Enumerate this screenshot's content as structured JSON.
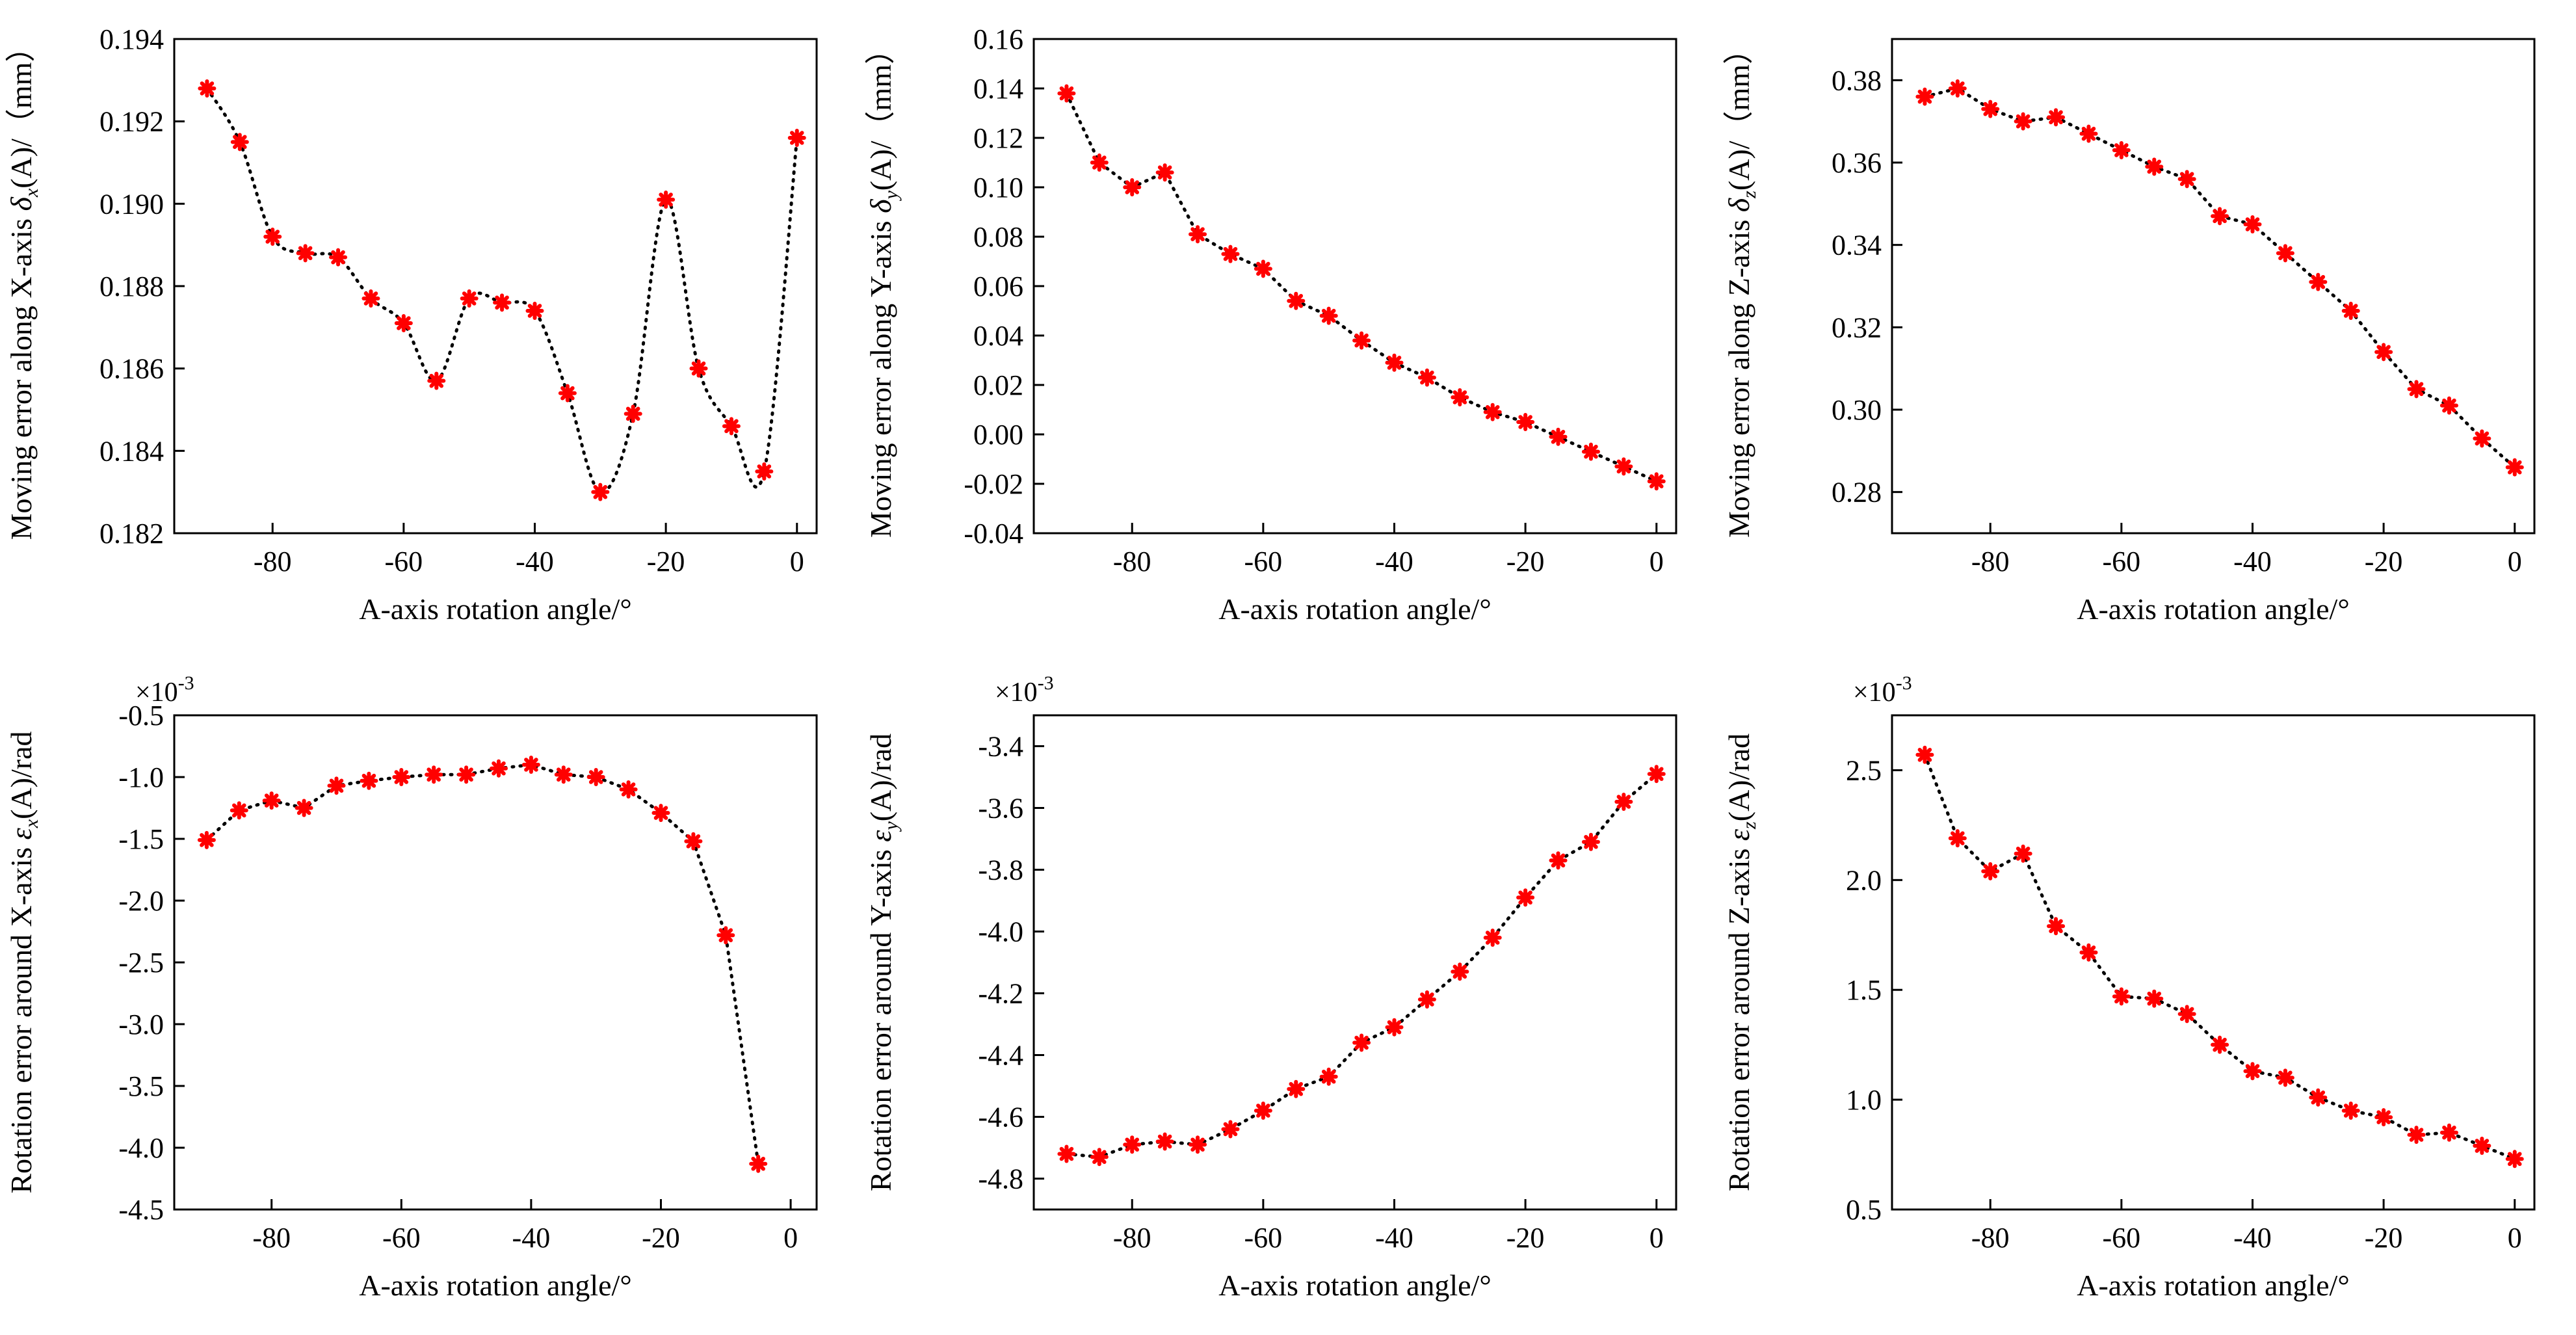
{
  "colors": {
    "marker": "#ff0000",
    "fit_line": "#000000",
    "axis": "#000000"
  },
  "chart_data": [
    {
      "type": "scatter",
      "panel": "top-left",
      "xlabel": "A-axis rotation angle/°",
      "ylabel": "Moving error along X-axis δx(A)/（mm）",
      "ylabel_parts": {
        "before": "Moving error along X-axis ",
        "sym": "δ",
        "sub": "x",
        "after": "(A)/（mm）"
      },
      "xlim": [
        -95,
        3
      ],
      "ylim": [
        0.182,
        0.194
      ],
      "xticks": [
        -80,
        -60,
        -40,
        -20,
        0
      ],
      "yticks": [
        0.182,
        0.184,
        0.186,
        0.188,
        0.19,
        0.192,
        0.194
      ],
      "ytick_labels": [
        "0.182",
        "0.184",
        "0.186",
        "0.188",
        "0.190",
        "0.192",
        "0.194"
      ],
      "multiplier_label": "",
      "fit": "spline",
      "x": [
        -90,
        -85,
        -80,
        -75,
        -70,
        -65,
        -60,
        -55,
        -50,
        -45,
        -40,
        -35,
        -30,
        -25,
        -20,
        -15,
        -10,
        -5,
        0
      ],
      "y": [
        0.1928,
        0.1915,
        0.1892,
        0.1888,
        0.1887,
        0.1877,
        0.1871,
        0.1857,
        0.1877,
        0.1876,
        0.1874,
        0.1854,
        0.183,
        0.1849,
        0.1901,
        0.186,
        0.1846,
        0.1835,
        0.1916
      ]
    },
    {
      "type": "scatter",
      "panel": "top-middle",
      "xlabel": "A-axis rotation angle/°",
      "ylabel": "Moving error along Y-axis δy(A)/（mm）",
      "ylabel_parts": {
        "before": "Moving error along Y-axis ",
        "sym": "δ",
        "sub": "y",
        "after": "(A)/（mm）"
      },
      "xlim": [
        -95,
        3
      ],
      "ylim": [
        -0.04,
        0.16
      ],
      "xticks": [
        -80,
        -60,
        -40,
        -20,
        0
      ],
      "yticks": [
        -0.04,
        -0.02,
        0.0,
        0.02,
        0.04,
        0.06,
        0.08,
        0.1,
        0.12,
        0.14,
        0.16
      ],
      "ytick_labels": [
        "-0.04",
        "-0.02",
        "0.00",
        "0.02",
        "0.04",
        "0.06",
        "0.08",
        "0.10",
        "0.12",
        "0.14",
        "0.16"
      ],
      "multiplier_label": "",
      "fit": "linear",
      "x": [
        -90,
        -85,
        -80,
        -75,
        -70,
        -65,
        -60,
        -55,
        -50,
        -45,
        -40,
        -35,
        -30,
        -25,
        -20,
        -15,
        -10,
        -5,
        0
      ],
      "y": [
        0.138,
        0.11,
        0.1,
        0.106,
        0.081,
        0.073,
        0.067,
        0.054,
        0.048,
        0.038,
        0.029,
        0.023,
        0.015,
        0.009,
        0.005,
        -0.001,
        -0.007,
        -0.013,
        -0.019
      ]
    },
    {
      "type": "scatter",
      "panel": "top-right",
      "xlabel": "A-axis rotation angle/°",
      "ylabel": "Moving error along Z-axis δz(A)/（mm）",
      "ylabel_parts": {
        "before": "Moving error along Z-axis ",
        "sym": "δ",
        "sub": "z",
        "after": "(A)/（mm）"
      },
      "xlim": [
        -95,
        3
      ],
      "ylim": [
        0.27,
        0.39
      ],
      "xticks": [
        -80,
        -60,
        -40,
        -20,
        0
      ],
      "yticks": [
        0.28,
        0.3,
        0.32,
        0.34,
        0.36,
        0.38
      ],
      "ytick_labels": [
        "0.28",
        "0.30",
        "0.32",
        "0.34",
        "0.36",
        "0.38"
      ],
      "multiplier_label": "",
      "fit": "linear",
      "x": [
        -90,
        -85,
        -80,
        -75,
        -70,
        -65,
        -60,
        -55,
        -50,
        -45,
        -40,
        -35,
        -30,
        -25,
        -20,
        -15,
        -10,
        -5,
        0
      ],
      "y": [
        0.376,
        0.378,
        0.373,
        0.37,
        0.371,
        0.367,
        0.363,
        0.359,
        0.356,
        0.347,
        0.345,
        0.338,
        0.331,
        0.324,
        0.314,
        0.305,
        0.301,
        0.293,
        0.286
      ]
    },
    {
      "type": "scatter",
      "panel": "bottom-left",
      "xlabel": "A-axis rotation angle/°",
      "ylabel": "Rotation error around X-axis εx(A)/rad",
      "ylabel_parts": {
        "before": "Rotation error around X-axis ",
        "sym": "ε",
        "sub": "x",
        "after": "(A)/rad"
      },
      "xlim": [
        -95,
        4
      ],
      "ylim": [
        -4.5,
        -0.5
      ],
      "xticks": [
        -80,
        -60,
        -40,
        -20,
        0
      ],
      "yticks": [
        -4.5,
        -4.0,
        -3.5,
        -3.0,
        -2.5,
        -2.0,
        -1.5,
        -1.0,
        -0.5
      ],
      "ytick_labels": [
        "-4.5",
        "-4.0",
        "-3.5",
        "-3.0",
        "-2.5",
        "-2.0",
        "-1.5",
        "-1.0",
        "-0.5"
      ],
      "multiplier_label": "×10-3",
      "fit": "linear",
      "x": [
        -90,
        -85,
        -80,
        -75,
        -70,
        -65,
        -60,
        -55,
        -50,
        -45,
        -40,
        -35,
        -30,
        -25,
        -20,
        -15,
        -10,
        -5
      ],
      "y": [
        -1.51,
        -1.27,
        -1.19,
        -1.25,
        -1.07,
        -1.03,
        -1.0,
        -0.98,
        -0.98,
        -0.93,
        -0.9,
        -0.98,
        -1.0,
        -1.1,
        -1.29,
        -1.52,
        -2.28,
        -4.13
      ]
    },
    {
      "type": "scatter",
      "panel": "bottom-middle",
      "xlabel": "A-axis rotation angle/°",
      "ylabel": "Rotation error around Y-axis εy(A)/rad",
      "ylabel_parts": {
        "before": "Rotation error around Y-axis ",
        "sym": "ε",
        "sub": "y",
        "after": "(A)/rad"
      },
      "xlim": [
        -95,
        3
      ],
      "ylim": [
        -4.9,
        -3.3
      ],
      "xticks": [
        -80,
        -60,
        -40,
        -20,
        0
      ],
      "yticks": [
        -4.8,
        -4.6,
        -4.4,
        -4.2,
        -4.0,
        -3.8,
        -3.6,
        -3.4
      ],
      "ytick_labels": [
        "-4.8",
        "-4.6",
        "-4.4",
        "-4.2",
        "-4.0",
        "-3.8",
        "-3.6",
        "-3.4"
      ],
      "multiplier_label": "×10-3",
      "fit": "linear",
      "x": [
        -90,
        -85,
        -80,
        -75,
        -70,
        -65,
        -60,
        -55,
        -50,
        -45,
        -40,
        -35,
        -30,
        -25,
        -20,
        -15,
        -10,
        -5,
        0
      ],
      "y": [
        -4.72,
        -4.73,
        -4.69,
        -4.68,
        -4.69,
        -4.64,
        -4.58,
        -4.51,
        -4.47,
        -4.36,
        -4.31,
        -4.22,
        -4.13,
        -4.02,
        -3.89,
        -3.77,
        -3.71,
        -3.58,
        -3.49
      ]
    },
    {
      "type": "scatter",
      "panel": "bottom-right",
      "xlabel": "A-axis rotation angle/°",
      "ylabel": "Rotation error around Z-axis εz(A)/rad",
      "ylabel_parts": {
        "before": "Rotation error around Z-axis ",
        "sym": "ε",
        "sub": "z",
        "after": "(A)/rad"
      },
      "xlim": [
        -95,
        3
      ],
      "ylim": [
        0.5,
        2.75
      ],
      "xticks": [
        -80,
        -60,
        -40,
        -20,
        0
      ],
      "yticks": [
        0.5,
        1.0,
        1.5,
        2.0,
        2.5
      ],
      "ytick_labels": [
        "0.5",
        "1.0",
        "1.5",
        "2.0",
        "2.5"
      ],
      "multiplier_label": "×10-3",
      "fit": "linear",
      "x": [
        -90,
        -85,
        -80,
        -75,
        -70,
        -65,
        -60,
        -55,
        -50,
        -45,
        -40,
        -35,
        -30,
        -25,
        -20,
        -15,
        -10,
        -5,
        0
      ],
      "y": [
        2.57,
        2.19,
        2.04,
        2.12,
        1.79,
        1.67,
        1.47,
        1.46,
        1.39,
        1.25,
        1.13,
        1.1,
        1.01,
        0.95,
        0.92,
        0.84,
        0.85,
        0.79,
        0.73
      ]
    }
  ]
}
